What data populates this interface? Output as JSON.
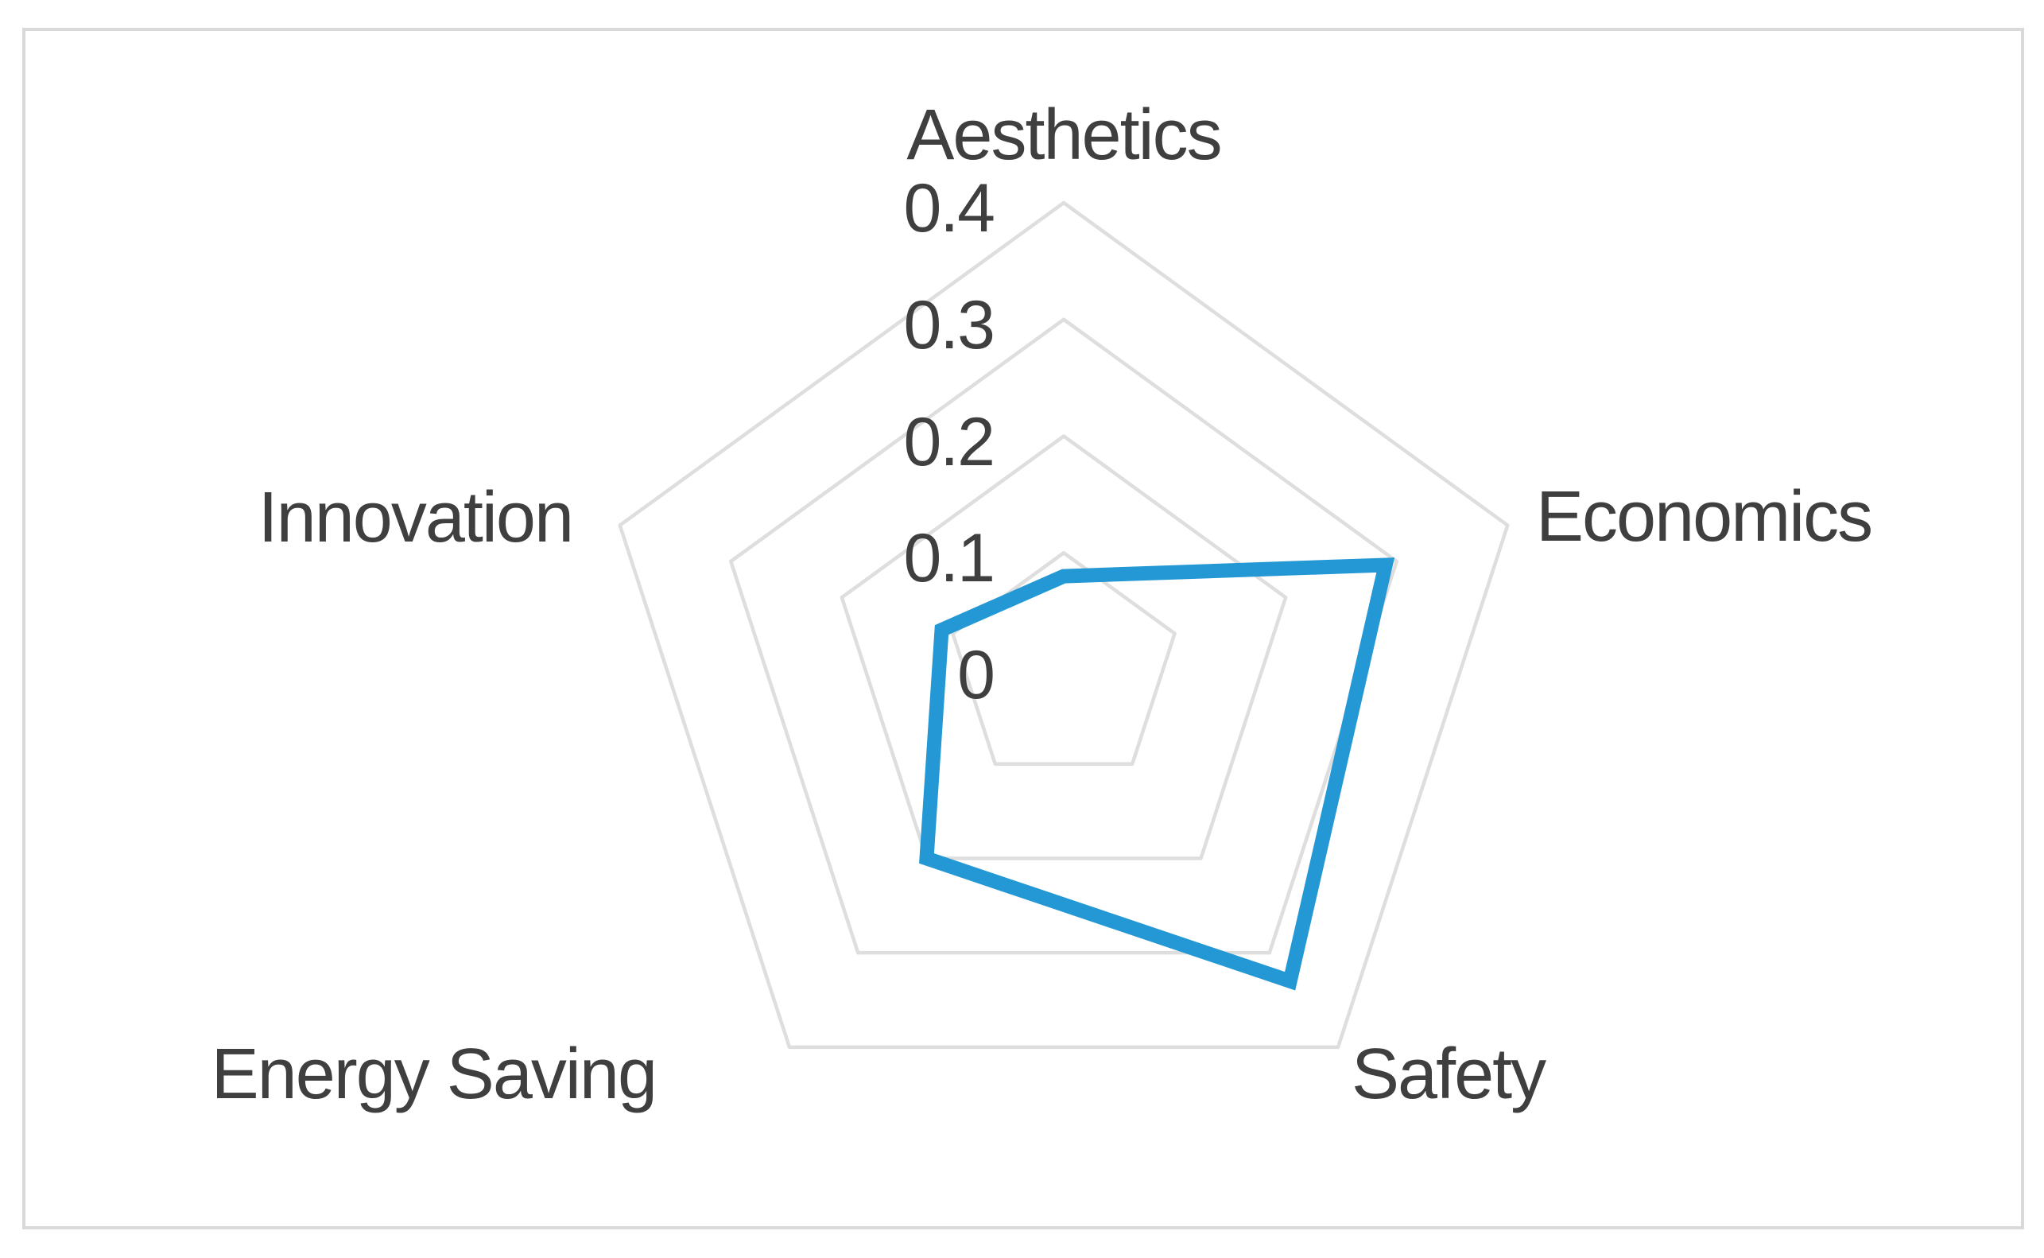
{
  "chart_data": {
    "type": "radar",
    "categories": [
      "Aesthetics",
      "Economics",
      "Safety",
      "Energy Saving",
      "Innovation"
    ],
    "series": [
      {
        "values": [
          0.08,
          0.29,
          0.33,
          0.2,
          0.11
        ],
        "color": "#2398D4"
      }
    ],
    "axis": {
      "min": 0,
      "max": 0.4,
      "interval": 0.1,
      "ticks": [
        {
          "value": 0,
          "label": "0"
        },
        {
          "value": 0.1,
          "label": "0.1"
        },
        {
          "value": 0.2,
          "label": "0.2"
        },
        {
          "value": 0.3,
          "label": "0.3"
        },
        {
          "value": 0.4,
          "label": "0.4"
        }
      ],
      "tick_axis": "Aesthetics"
    },
    "grid": {
      "shape": "pentagon",
      "rings": 4,
      "radial_spokes": false
    },
    "legend": {
      "visible": false
    },
    "colors": {
      "series": "#2398D4",
      "grid": "#DEDEDE",
      "frame": "#D9D9D9",
      "text": "#3F3F3F",
      "background": "#FFFFFF"
    }
  }
}
